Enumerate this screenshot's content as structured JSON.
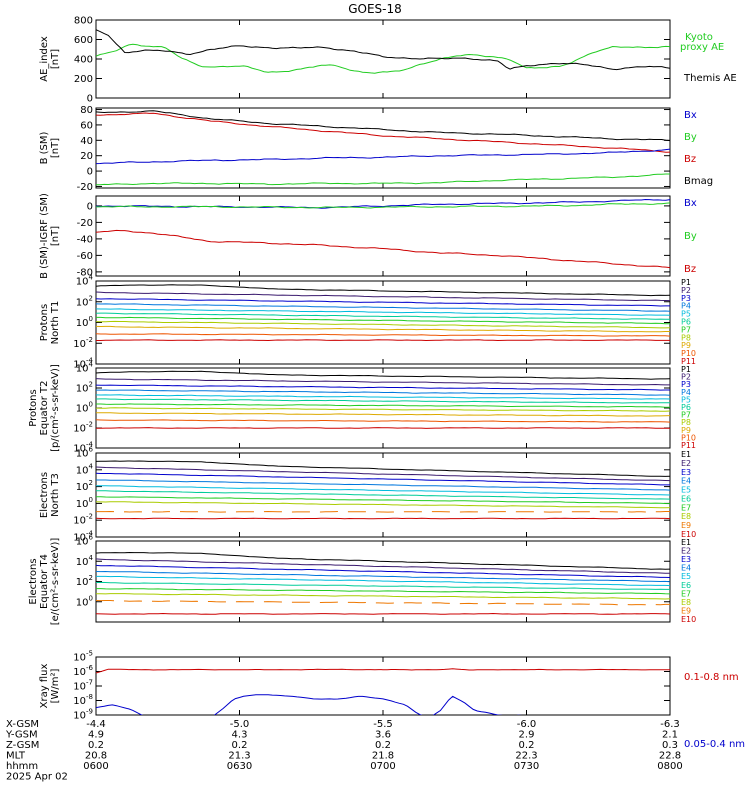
{
  "title": "GOES-18",
  "colors": {
    "black": "#000000",
    "red": "#cc0000",
    "green": "#22cc22",
    "blue": "#0000cc",
    "proton_channels": [
      "#000000",
      "#3a1a6e",
      "#0000cc",
      "#0077dd",
      "#00bbdd",
      "#00cc99",
      "#22cc22",
      "#aacc00",
      "#ddaa00",
      "#ee5500",
      "#cc0000"
    ],
    "electron_channels": [
      "#000000",
      "#3a1a6e",
      "#0000cc",
      "#0077dd",
      "#00bbdd",
      "#00cc99",
      "#22cc22",
      "#aacc00",
      "#ee7700",
      "#cc0000"
    ]
  },
  "chart_data": [
    {
      "type": "line",
      "ylabel": [
        "AE_index",
        "[nT]"
      ],
      "ylim": [
        0,
        800
      ],
      "yticks": [
        "800",
        "600",
        "400",
        "200",
        "0"
      ],
      "legend": [
        "Kyoto",
        "proxy AE",
        "Themis AE"
      ],
      "series": [
        {
          "name": "Kyoto proxy AE",
          "color": "#22cc22",
          "x": [
            0.0,
            0.03,
            0.06,
            0.09,
            0.12,
            0.15,
            0.18,
            0.2,
            0.23,
            0.26,
            0.3,
            0.33,
            0.36,
            0.39,
            0.42,
            0.45,
            0.48,
            0.51,
            0.54,
            0.57,
            0.6,
            0.63,
            0.66,
            0.69,
            0.72,
            0.75,
            0.78,
            0.81,
            0.84,
            0.87,
            0.9,
            0.93,
            0.96,
            1.0
          ],
          "y": [
            430,
            470,
            550,
            540,
            520,
            400,
            330,
            320,
            330,
            320,
            260,
            280,
            300,
            330,
            330,
            280,
            260,
            260,
            290,
            360,
            400,
            430,
            440,
            430,
            400,
            300,
            310,
            330,
            400,
            470,
            520,
            530,
            520,
            520
          ]
        },
        {
          "name": "Themis AE",
          "color": "#000000",
          "x": [
            0.0,
            0.02,
            0.05,
            0.08,
            0.12,
            0.16,
            0.2,
            0.25,
            0.3,
            0.35,
            0.4,
            0.45,
            0.5,
            0.55,
            0.6,
            0.65,
            0.7,
            0.72,
            0.75,
            0.8,
            0.85,
            0.9,
            0.95,
            1.0
          ],
          "y": [
            690,
            650,
            470,
            490,
            480,
            450,
            500,
            530,
            520,
            510,
            520,
            480,
            420,
            410,
            400,
            410,
            380,
            290,
            330,
            360,
            340,
            300,
            320,
            310
          ]
        }
      ]
    },
    {
      "type": "line",
      "ylabel": [
        "B (SM)",
        "[nT]"
      ],
      "ylim": [
        -22,
        82
      ],
      "yticks": [
        "80",
        "60",
        "40",
        "20",
        "0",
        "-20"
      ],
      "yticks_values": [
        80,
        60,
        40,
        20,
        0,
        -20
      ],
      "legend": [
        "Bx",
        "By",
        "Bz",
        "Bmag"
      ],
      "series": [
        {
          "name": "Bmag",
          "color": "#000000",
          "x": [
            0,
            0.1,
            0.2,
            0.3,
            0.4,
            0.5,
            0.6,
            0.7,
            0.8,
            0.9,
            1.0
          ],
          "y": [
            76,
            78,
            68,
            62,
            58,
            54,
            50,
            48,
            45,
            42,
            40
          ]
        },
        {
          "name": "Bz",
          "color": "#cc0000",
          "x": [
            0,
            0.1,
            0.2,
            0.3,
            0.4,
            0.5,
            0.6,
            0.7,
            0.8,
            0.9,
            1.0
          ],
          "y": [
            73,
            75,
            65,
            58,
            52,
            46,
            42,
            38,
            34,
            30,
            25
          ]
        },
        {
          "name": "Bx",
          "color": "#0000cc",
          "x": [
            0,
            0.1,
            0.2,
            0.3,
            0.4,
            0.5,
            0.6,
            0.7,
            0.8,
            0.9,
            1.0
          ],
          "y": [
            10,
            12,
            14,
            15,
            17,
            18,
            20,
            21,
            22,
            24,
            28
          ]
        },
        {
          "name": "By",
          "color": "#22cc22",
          "x": [
            0,
            0.1,
            0.2,
            0.3,
            0.4,
            0.5,
            0.6,
            0.7,
            0.8,
            0.9,
            1.0
          ],
          "y": [
            -18,
            -16,
            -16,
            -17,
            -16,
            -16,
            -15,
            -12,
            -10,
            -8,
            -4
          ]
        }
      ]
    },
    {
      "type": "line",
      "ylabel": [
        "B (SM)-IGRF (SM)",
        "[nT]"
      ],
      "ylim": [
        -85,
        12
      ],
      "yticks": [
        "0",
        "-20",
        "-40",
        "-60",
        "-80"
      ],
      "yticks_values": [
        0,
        -20,
        -40,
        -60,
        -80
      ],
      "legend": [
        "Bx",
        "By",
        "Bz"
      ],
      "series": [
        {
          "name": "Bx",
          "color": "#0000cc",
          "x": [
            0,
            0.2,
            0.4,
            0.5,
            0.6,
            0.7,
            0.8,
            0.9,
            1.0
          ],
          "y": [
            0,
            -1,
            -2,
            0,
            2,
            3,
            4,
            6,
            8
          ]
        },
        {
          "name": "By",
          "color": "#22cc22",
          "x": [
            0,
            0.2,
            0.4,
            0.6,
            0.8,
            0.9,
            1.0
          ],
          "y": [
            -1,
            -1,
            -2,
            -1,
            0,
            2,
            3
          ]
        },
        {
          "name": "Bz",
          "color": "#cc0000",
          "x": [
            0,
            0.05,
            0.1,
            0.2,
            0.3,
            0.4,
            0.5,
            0.6,
            0.7,
            0.8,
            0.9,
            1.0
          ],
          "y": [
            -32,
            -30,
            -33,
            -43,
            -45,
            -48,
            -52,
            -57,
            -60,
            -65,
            -70,
            -75
          ]
        }
      ]
    },
    {
      "type": "line",
      "ylabel": [
        "Protons",
        "North T1"
      ],
      "ylog": true,
      "ylim": [
        -4,
        4
      ],
      "yticks": [
        "10^4",
        "10^2",
        "10^0",
        "10^-2",
        "10^-4"
      ],
      "legend": [
        "P1",
        "P2",
        "P3",
        "P4",
        "P5",
        "P6",
        "P7",
        "P8",
        "P9",
        "P10",
        "P11"
      ],
      "start": [
        3.5,
        2.9,
        2.3,
        1.8,
        1.3,
        0.9,
        0.5,
        0.1,
        -0.4,
        -1.1,
        -1.7
      ],
      "end": [
        2.6,
        2.1,
        1.6,
        1.1,
        0.7,
        0.3,
        -0.1,
        -0.5,
        -0.9,
        -1.3,
        -1.7
      ]
    },
    {
      "type": "line",
      "ylabel": [
        "Protons",
        "Equator T2",
        "[p/(cm²-s-sr-keV)]"
      ],
      "ylog": true,
      "ylim": [
        -4,
        4
      ],
      "yticks": [
        "10^4",
        "10^2",
        "10^0",
        "10^-2",
        "10^-4"
      ],
      "legend": [
        "P1",
        "P2",
        "P3",
        "P4",
        "P5",
        "P6",
        "P7",
        "P8",
        "P9",
        "P10",
        "P11"
      ],
      "start": [
        3.5,
        2.9,
        2.3,
        1.8,
        1.3,
        0.9,
        0.4,
        0.0,
        -0.5,
        -1.2,
        -2.0
      ],
      "end": [
        2.9,
        2.3,
        1.8,
        1.3,
        0.9,
        0.5,
        0.1,
        -0.3,
        -0.8,
        -1.4,
        -2.0
      ]
    },
    {
      "type": "line",
      "ylabel": [
        "Electrons",
        "North T3"
      ],
      "ylog": true,
      "ylim": [
        -4,
        6
      ],
      "yticks": [
        "10^6",
        "10^4",
        "10^2",
        "10^0",
        "10^-2",
        "10^-4"
      ],
      "legend": [
        "E1",
        "E2",
        "E3",
        "E4",
        "E5",
        "E6",
        "E7",
        "E8",
        "E9",
        "E10"
      ],
      "start": [
        5.0,
        4.3,
        3.6,
        2.8,
        2.1,
        1.5,
        0.8,
        0.2,
        -1.0,
        -1.8
      ],
      "end": [
        3.2,
        2.7,
        2.2,
        1.6,
        1.0,
        0.5,
        0.0,
        -0.5,
        -1.0,
        -1.8
      ]
    },
    {
      "type": "line",
      "ylabel": [
        "Electrons",
        "Equator T4",
        "[e/(cm²-s-sr-keV)]"
      ],
      "ylog": true,
      "ylim": [
        -2,
        6
      ],
      "yticks": [
        "10^6",
        "10^4",
        "10^2",
        "10^0"
      ],
      "legend": [
        "E1",
        "E2",
        "E3",
        "E4",
        "E5",
        "E6",
        "E7",
        "E8",
        "E9",
        "E10"
      ],
      "start": [
        4.8,
        4.2,
        3.6,
        3.0,
        2.5,
        1.9,
        1.3,
        0.8,
        0.1,
        -1.2
      ],
      "end": [
        3.2,
        2.8,
        2.4,
        2.0,
        1.6,
        1.2,
        0.8,
        0.3,
        -0.3,
        -1.2
      ]
    },
    {
      "type": "line",
      "ylabel": [
        "Xray flux",
        "[W/m²]"
      ],
      "ylog": true,
      "ylim": [
        -9,
        -5
      ],
      "yticks": [
        "10^-5",
        "10^-6",
        "10^-7",
        "10^-8",
        "10^-9"
      ],
      "legend": [
        "0.1-0.8 nm",
        "0.05-0.4 nm"
      ],
      "series": [
        {
          "name": "0.1-0.8 nm",
          "color": "#cc0000",
          "x": [
            0,
            0.02,
            0.1,
            0.2,
            0.3,
            0.4,
            0.5,
            0.55,
            0.6,
            0.62,
            0.65,
            0.7,
            0.8,
            0.9,
            1.0
          ],
          "y": [
            -6.1,
            -5.85,
            -5.88,
            -5.87,
            -5.88,
            -5.86,
            -5.87,
            -5.89,
            -5.86,
            -5.82,
            -5.9,
            -5.87,
            -5.88,
            -5.87,
            -5.88
          ]
        },
        {
          "name": "0.05-0.4 nm",
          "color": "#0000cc",
          "x": [
            0,
            0.03,
            0.06,
            0.08,
            0.1,
            0.13,
            0.16,
            0.18,
            0.2,
            0.22,
            0.24,
            0.26,
            0.28,
            0.3,
            0.34,
            0.38,
            0.42,
            0.46,
            0.5,
            0.54,
            0.56,
            0.58,
            0.6,
            0.62,
            0.64,
            0.66,
            0.68,
            0.7,
            0.72,
            0.74,
            0.76,
            0.78,
            0.8,
            0.82
          ],
          "y": [
            -8.5,
            -8.3,
            -8.6,
            -9.0,
            -9.3,
            -9.4,
            -9.3,
            -9.0,
            -9.2,
            -8.6,
            -7.9,
            -7.7,
            -7.6,
            -7.6,
            -7.7,
            -7.9,
            -7.9,
            -7.7,
            -7.9,
            -8.3,
            -8.9,
            -9.2,
            -8.7,
            -7.7,
            -8.1,
            -8.7,
            -8.8,
            -9.0,
            -9.1,
            -9.0,
            -9.3,
            -9.1,
            -9.4,
            -9.5
          ]
        }
      ]
    }
  ],
  "x_axis": {
    "rows": [
      {
        "label": "X-GSM",
        "values": [
          "-4.4",
          "-5.0",
          "-5.5",
          "-6.0",
          "-6.3"
        ]
      },
      {
        "label": "Y-GSM",
        "values": [
          "4.9",
          "4.3",
          "3.6",
          "2.9",
          "2.1"
        ]
      },
      {
        "label": "Z-GSM",
        "values": [
          "0.2",
          "0.2",
          "0.2",
          "0.2",
          "0.3"
        ]
      },
      {
        "label": "MLT",
        "values": [
          "20.8",
          "21.3",
          "21.8",
          "22.3",
          "22.8"
        ]
      },
      {
        "label": "hhmm",
        "values": [
          "0600",
          "0630",
          "0700",
          "0730",
          "0800"
        ]
      }
    ],
    "date": "2025 Apr 02"
  }
}
